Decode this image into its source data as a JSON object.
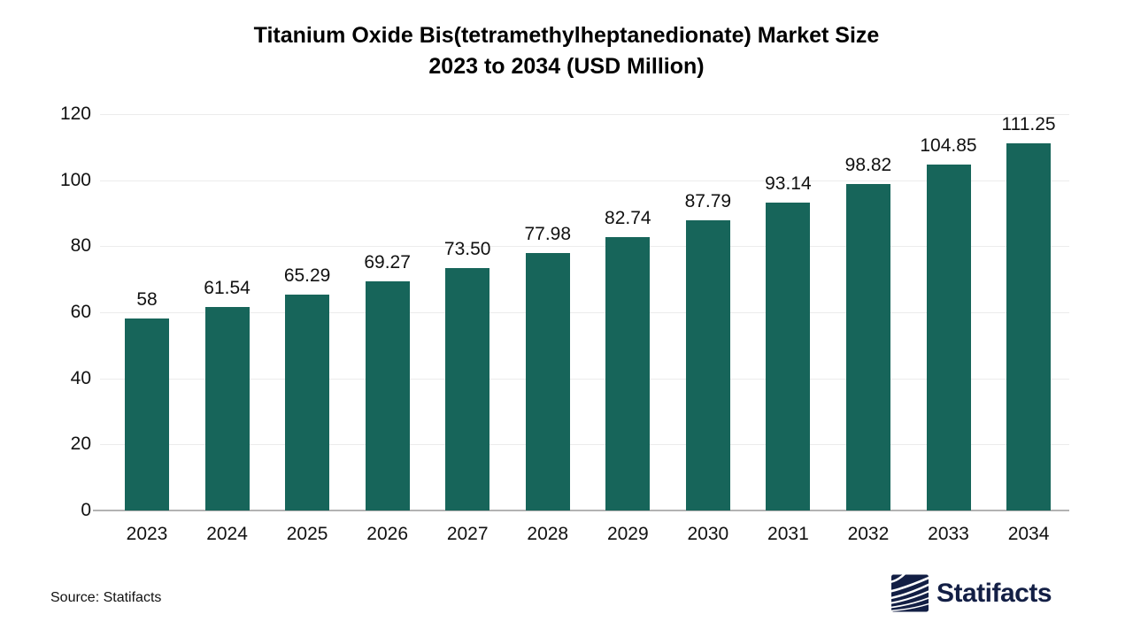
{
  "title": {
    "line1": "Titanium Oxide Bis(tetramethylheptanedionate) Market Size",
    "line2": "2023 to 2034 (USD Million)"
  },
  "source_note": "Source: Statifacts",
  "brand": {
    "name": "Statifacts",
    "icon": "waves-logo-icon",
    "color": "#131F45"
  },
  "chart_data": {
    "type": "bar",
    "title": "Titanium Oxide Bis(tetramethylheptanedionate) Market Size 2023 to 2034 (USD Million)",
    "categories": [
      "2023",
      "2024",
      "2025",
      "2026",
      "2027",
      "2028",
      "2029",
      "2030",
      "2031",
      "2032",
      "2033",
      "2034"
    ],
    "values": [
      58,
      61.54,
      65.29,
      69.27,
      73.5,
      77.98,
      82.74,
      87.79,
      93.14,
      98.82,
      104.85,
      111.25
    ],
    "value_labels": [
      "58",
      "61.54",
      "65.29",
      "69.27",
      "73.50",
      "77.98",
      "82.74",
      "87.79",
      "93.14",
      "98.82",
      "104.85",
      "111.25"
    ],
    "xlabel": "",
    "ylabel": "",
    "ylim": [
      0,
      120
    ],
    "yticks": [
      0,
      20,
      40,
      60,
      80,
      100,
      120
    ],
    "legend": "none",
    "grid": "horizontal",
    "bar_color": "#17655A",
    "gridline_color": "#ECECEC",
    "axis_line_color": "#B3B3B3",
    "label_color": "#111111"
  }
}
